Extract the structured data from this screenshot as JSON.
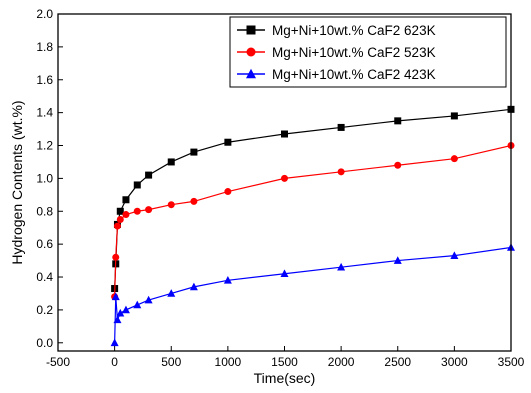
{
  "chart_data": {
    "type": "scatter",
    "title": "",
    "xlabel": "Time(sec)",
    "ylabel": "Hydrogen Contents (wt.%)",
    "xlim": [
      -500,
      3500
    ],
    "ylim": [
      -0.05,
      2.0
    ],
    "xticks": [
      -500,
      0,
      500,
      1000,
      1500,
      2000,
      2500,
      3000,
      3500
    ],
    "yticks": [
      0.0,
      0.2,
      0.4,
      0.6,
      0.8,
      1.0,
      1.2,
      1.4,
      1.6,
      1.8,
      2.0
    ],
    "xtick_labels": [
      "-500",
      "0",
      "500",
      "1000",
      "1500",
      "2000",
      "2500",
      "3000",
      "3500"
    ],
    "ytick_labels": [
      "0.0",
      "0.2",
      "0.4",
      "0.6",
      "0.8",
      "1.0",
      "1.2",
      "1.4",
      "1.6",
      "1.8",
      "2.0"
    ],
    "grid": false,
    "legend_position": "top-right",
    "series": [
      {
        "name": "Mg+Ni+10wt.% CaF2 623K",
        "color": "#000000",
        "marker": "square",
        "x": [
          0,
          10,
          25,
          50,
          100,
          200,
          300,
          500,
          700,
          1000,
          1500,
          2000,
          2500,
          3000,
          3500
        ],
        "y": [
          0.33,
          0.48,
          0.72,
          0.8,
          0.87,
          0.96,
          1.02,
          1.1,
          1.16,
          1.22,
          1.27,
          1.31,
          1.35,
          1.38,
          1.42
        ]
      },
      {
        "name": "Mg+Ni+10wt.% CaF2 523K",
        "color": "#ff0000",
        "marker": "circle",
        "x": [
          0,
          10,
          25,
          50,
          100,
          200,
          300,
          500,
          700,
          1000,
          1500,
          2000,
          2500,
          3000,
          3500
        ],
        "y": [
          0.28,
          0.52,
          0.71,
          0.75,
          0.78,
          0.8,
          0.81,
          0.84,
          0.86,
          0.92,
          1.0,
          1.04,
          1.08,
          1.12,
          1.2
        ]
      },
      {
        "name": "Mg+Ni+10wt.% CaF2 423K",
        "color": "#0000ff",
        "marker": "triangle",
        "x": [
          0,
          10,
          25,
          50,
          100,
          200,
          300,
          500,
          700,
          1000,
          1500,
          2000,
          2500,
          3000,
          3500
        ],
        "y": [
          0.0,
          0.28,
          0.14,
          0.18,
          0.2,
          0.23,
          0.26,
          0.3,
          0.34,
          0.38,
          0.42,
          0.46,
          0.5,
          0.53,
          0.58
        ]
      }
    ]
  }
}
